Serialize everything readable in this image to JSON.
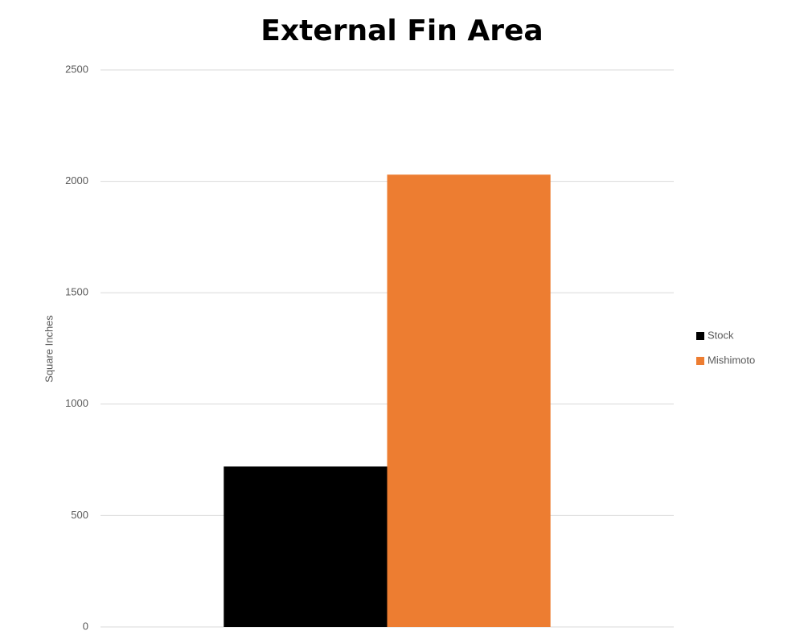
{
  "chart_data": {
    "type": "bar",
    "title": "External Fin Area",
    "ylabel": "Square Inches",
    "categories": [
      null
    ],
    "series": [
      {
        "name": "Stock",
        "color": "#000000",
        "values": [
          720
        ]
      },
      {
        "name": "Mishimoto",
        "color": "#ed7d31",
        "values": [
          2030
        ]
      }
    ],
    "ylim": [
      0,
      2500
    ],
    "yticks": [
      0,
      500,
      1000,
      1500,
      2000,
      2500
    ],
    "grid": true,
    "legend": "right"
  }
}
